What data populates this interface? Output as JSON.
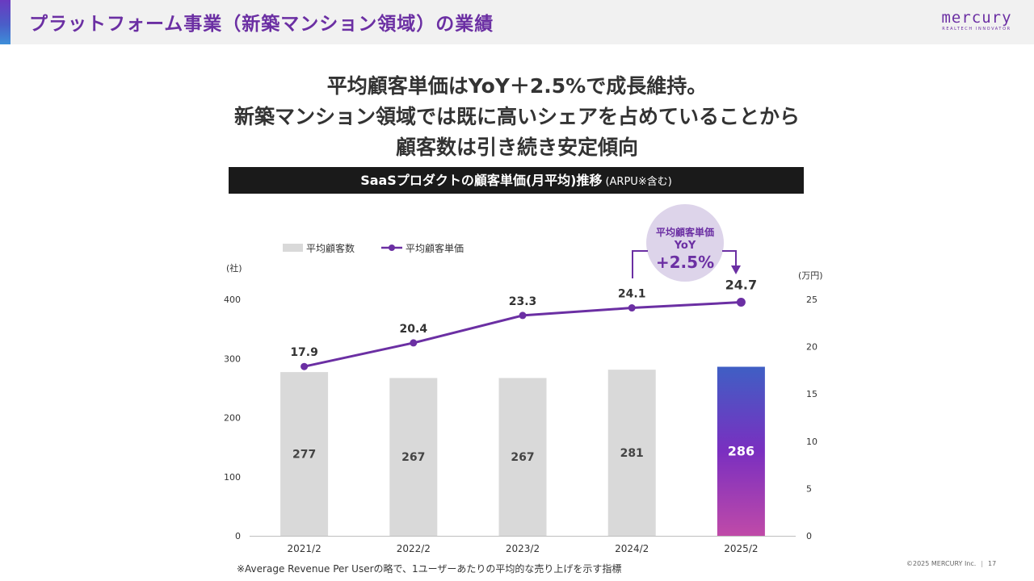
{
  "header": {
    "title": "プラットフォーム事業（新築マンション領域）の業績",
    "logo_text": "mercury",
    "logo_tagline": "REALTECH INNOVATOR"
  },
  "headline": {
    "lines": [
      "平均顧客単価はYoY＋2.5%で成長維持。",
      "新築マンション領域では既に高いシェアを占めていることから",
      "顧客数は引き続き安定傾向"
    ]
  },
  "banner": {
    "title": "SaaSプロダクトの顧客単価(月平均)推移",
    "subtitle": "(ARPU※含む)"
  },
  "callout": {
    "line1": "平均顧客単価",
    "line2": "YoY",
    "value": "+2.5%"
  },
  "colors": {
    "brand_purple": "#6b2fa3",
    "bar_gray": "#d9d9d9",
    "line_purple": "#6b2fa3",
    "callout_bg": "#ddd4ea",
    "highlight_bar_top": "#3f5fc4",
    "highlight_bar_mid": "#7a2fc0",
    "highlight_bar_bottom": "#c04aa8"
  },
  "chart_data": {
    "type": "bar",
    "categories": [
      "2021/2",
      "2022/2",
      "2023/2",
      "2024/2",
      "2025/2"
    ],
    "series": [
      {
        "name": "平均顧客数",
        "type": "bar",
        "axis": "left",
        "values": [
          277,
          267,
          267,
          281,
          286
        ],
        "labels": [
          "277",
          "267",
          "267",
          "281",
          "286"
        ]
      },
      {
        "name": "平均顧客単価",
        "type": "line",
        "axis": "right",
        "values": [
          17.9,
          20.4,
          23.3,
          24.1,
          24.7
        ],
        "labels": [
          "17.9",
          "20.4",
          "23.3",
          "24.1",
          "24.7"
        ]
      }
    ],
    "ylabel": "(社)",
    "y2label": "(万円)",
    "ylim": [
      0,
      400
    ],
    "y2lim": [
      0,
      25
    ],
    "yticks": [
      "0",
      "100",
      "200",
      "300",
      "400"
    ],
    "y2ticks": [
      "0",
      "5",
      "10",
      "15",
      "20",
      "25"
    ],
    "highlight_category": "2025/2",
    "legend_position": "top-left"
  },
  "footer": {
    "footnote": "※Average Revenue Per Userの略で、1ユーザーあたりの平均的な売り上げを示す指標",
    "copyright": "©2025 MERCURY Inc.",
    "separator": "|",
    "page_number": "17"
  }
}
